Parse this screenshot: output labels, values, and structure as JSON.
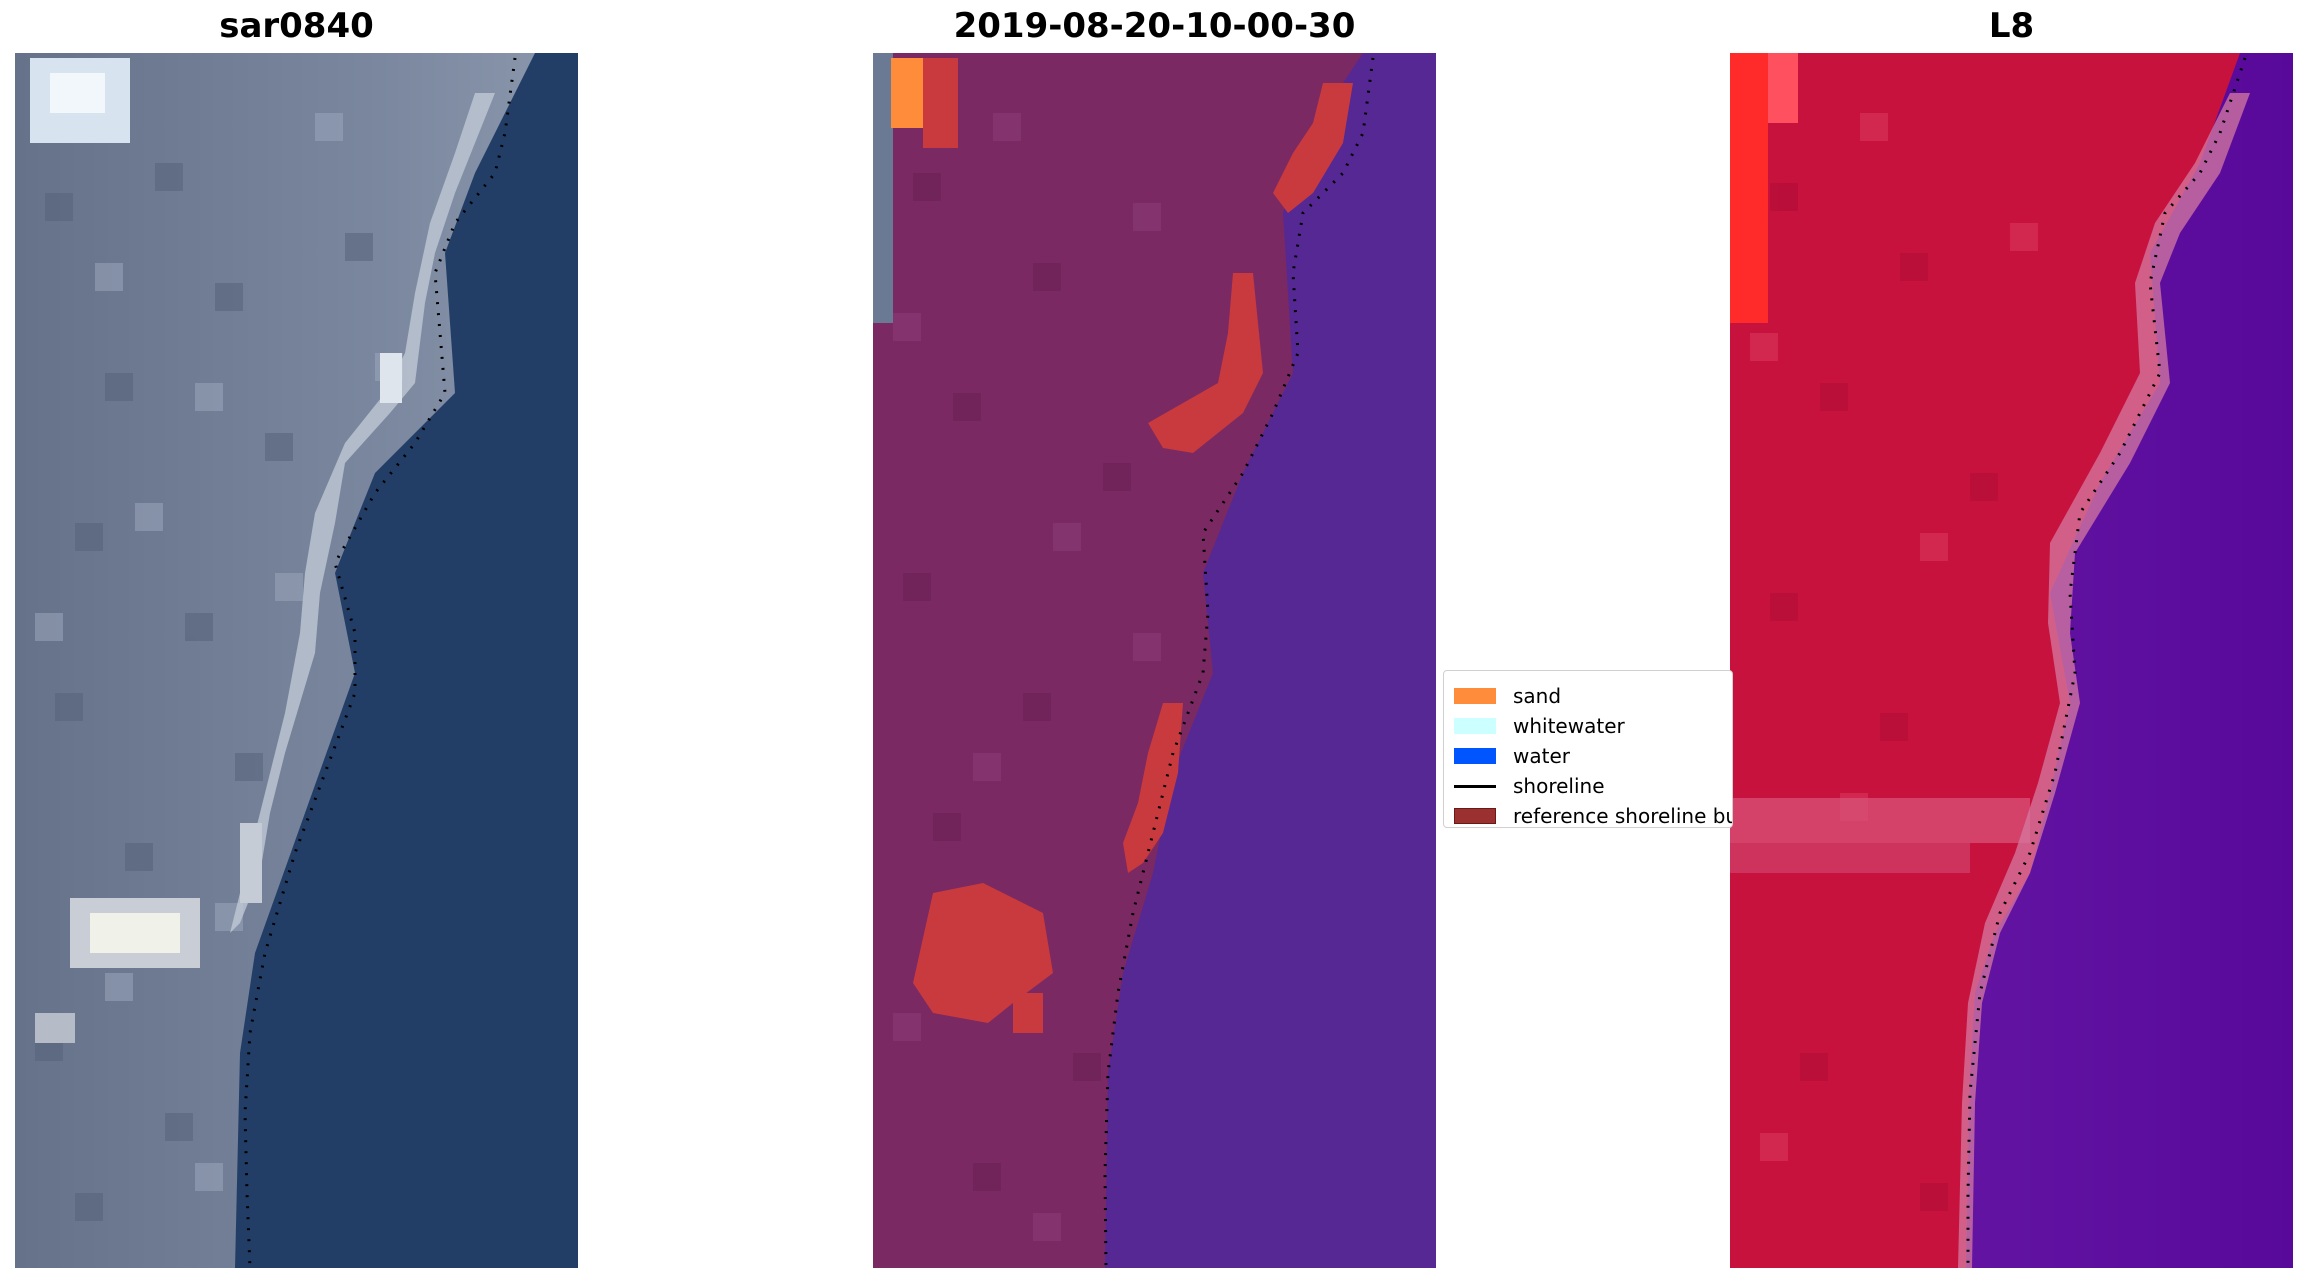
{
  "panels": {
    "rgb": {
      "title": "sar0840"
    },
    "classified": {
      "title": "2019-08-20-10-00-30"
    },
    "index": {
      "title": "L8"
    }
  },
  "legend": {
    "items": [
      {
        "label": "sand",
        "color": "#ff8c3a",
        "kind": "patch"
      },
      {
        "label": "whitewater",
        "color": "#ccffff",
        "kind": "patch"
      },
      {
        "label": "water",
        "color": "#0055ff",
        "kind": "patch"
      },
      {
        "label": "shoreline",
        "color": "#000000",
        "kind": "line"
      },
      {
        "label": "reference shoreline buffer",
        "color": "#9b3030",
        "kind": "patch"
      }
    ]
  },
  "colors": {
    "ocean_rgb": "#233e66",
    "land_rgb": "#6c7b94",
    "ocean_classified": "#562893",
    "land_classified": "#7a2962",
    "sand_classified": "#c83a3e",
    "land_index": "#c8123e",
    "ocean_index": "#5e0b9c",
    "shoreline": "#000000"
  }
}
